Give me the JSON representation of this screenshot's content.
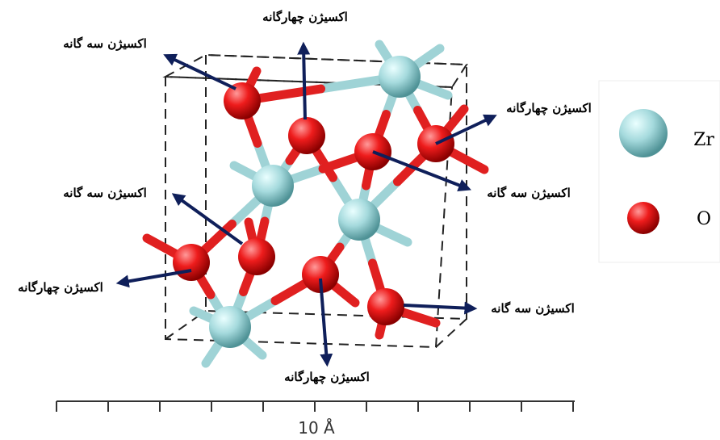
{
  "labels": [
    "اکسیژن سه گانه",
    "اکسیژن چهارگانه",
    "اکسیژن چهارگانه",
    "اکسیژن سه گانه",
    "اکسیژن سه گانه",
    "اکسیژن چهارگانه",
    "اکسیژن چهارگانه",
    "اکسیژن سه گانه"
  ],
  "legend": [
    {
      "label": "Zr"
    },
    {
      "label": "O"
    }
  ],
  "scale_label": "10 Å"
}
